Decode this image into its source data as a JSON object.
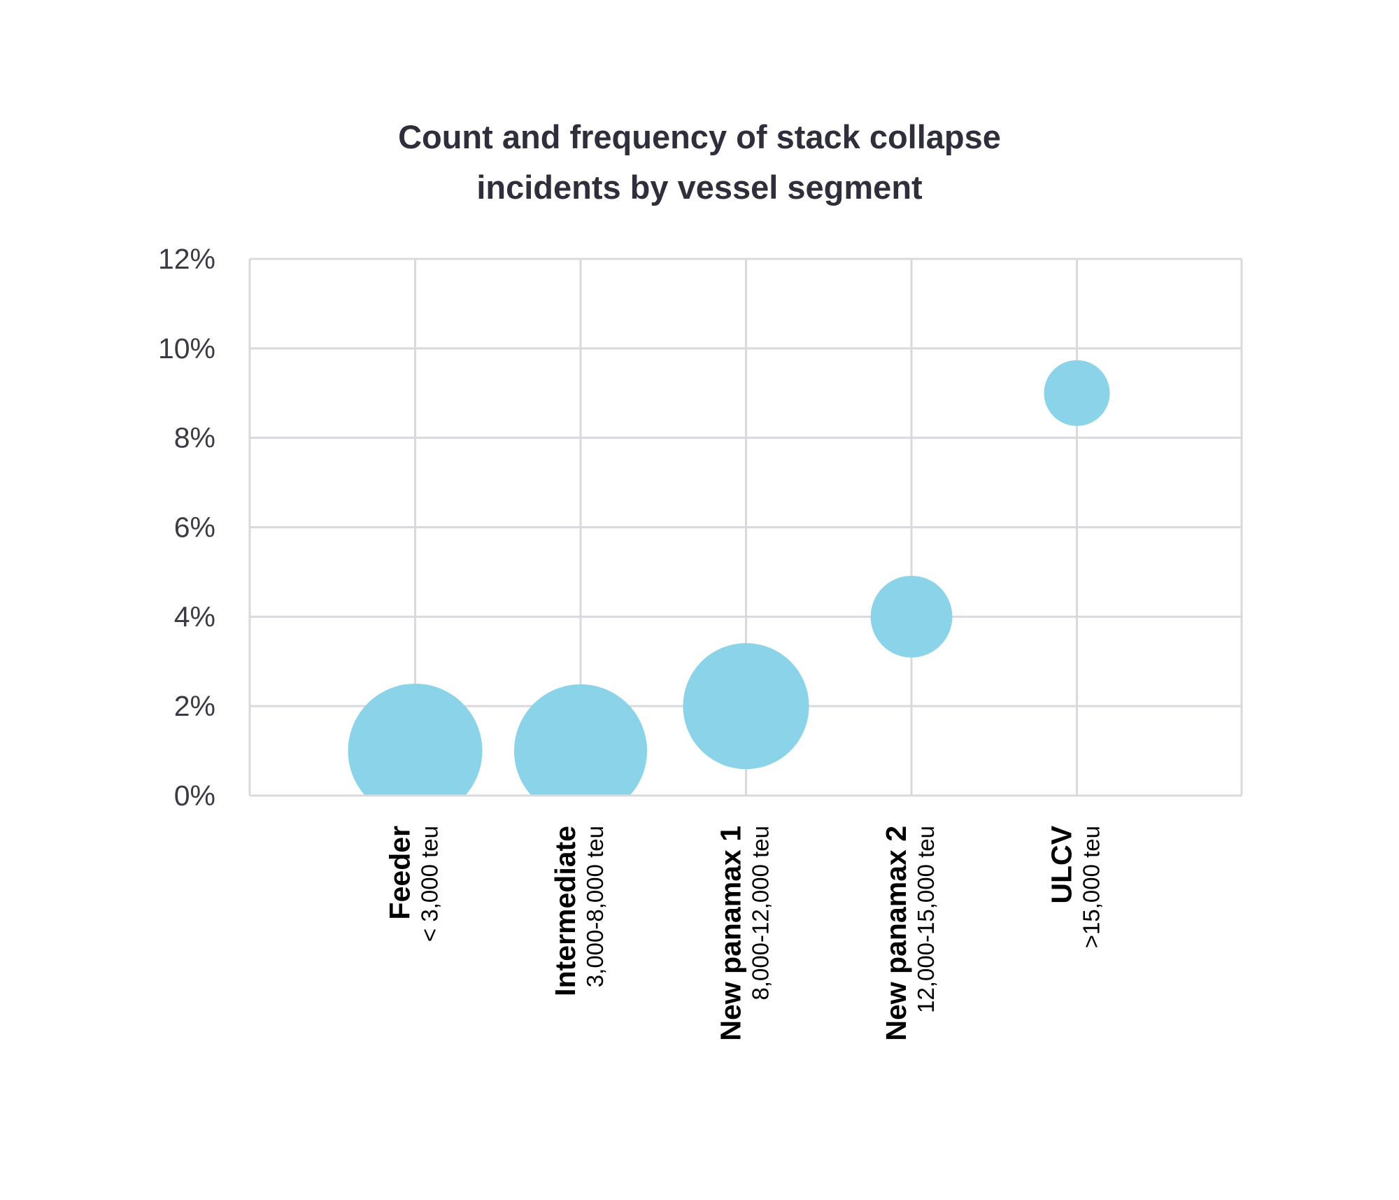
{
  "chart_data": {
    "type": "bubble",
    "title_lines": [
      "Count and frequency of stack collapse",
      "incidents by vessel segment"
    ],
    "xlabel": "",
    "ylabel": "",
    "ylim": [
      0,
      12
    ],
    "y_ticks": [
      "0%",
      "2%",
      "4%",
      "6%",
      "8%",
      "10%",
      "12%"
    ],
    "y_tick_values": [
      0,
      2,
      4,
      6,
      8,
      10,
      12
    ],
    "grid": true,
    "color": "#89d2e9",
    "categories": [
      {
        "name": "Feeder",
        "range": "< 3,000 teu",
        "frequency_pct": 1,
        "relative_count": 1.0
      },
      {
        "name": "Intermediate",
        "range": "3,000-8,000 teu",
        "frequency_pct": 1,
        "relative_count": 0.98
      },
      {
        "name": "New panamax 1",
        "range": "8,000-12,000 teu",
        "frequency_pct": 2,
        "relative_count": 0.88
      },
      {
        "name": "New panamax 2",
        "range": "12,000-15,000 teu",
        "frequency_pct": 4,
        "relative_count": 0.37
      },
      {
        "name": "ULCV",
        "range": ">15,000 teu",
        "frequency_pct": 9,
        "relative_count": 0.24
      }
    ]
  }
}
